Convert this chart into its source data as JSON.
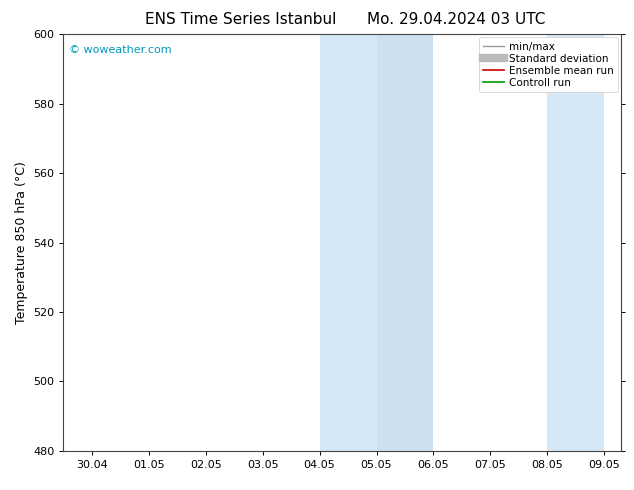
{
  "title": "ENS Time Series Istanbul",
  "subtitle": "Mo. 29.04.2024 03 UTC",
  "ylabel": "Temperature 850 hPa (°C)",
  "ylim": [
    480,
    600
  ],
  "yticks": [
    480,
    500,
    520,
    540,
    560,
    580,
    600
  ],
  "xtick_labels": [
    "30.04",
    "01.05",
    "02.05",
    "03.05",
    "04.05",
    "05.05",
    "06.05",
    "07.05",
    "08.05",
    "09.05"
  ],
  "watermark": "© woweather.com",
  "watermark_color": "#0099bb",
  "shaded_regions": [
    {
      "xstart": 4,
      "xend": 5,
      "color": "#d6e8f5"
    },
    {
      "xstart": 5,
      "xend": 6,
      "color": "#cce0f0"
    },
    {
      "xstart": 8,
      "xend": 9,
      "color": "#d6e8f5"
    }
  ],
  "legend_items": [
    {
      "label": "min/max",
      "color": "#999999",
      "lw": 1.0,
      "style": "solid",
      "type": "line"
    },
    {
      "label": "Standard deviation",
      "color": "#bbbbbb",
      "lw": 6,
      "style": "solid",
      "type": "thick"
    },
    {
      "label": "Ensemble mean run",
      "color": "#cc0000",
      "lw": 1.2,
      "style": "solid",
      "type": "line"
    },
    {
      "label": "Controll run",
      "color": "#009900",
      "lw": 1.2,
      "style": "solid",
      "type": "line"
    }
  ],
  "bg_color": "#ffffff",
  "plot_bg_color": "#ffffff",
  "title_fontsize": 11,
  "ylabel_fontsize": 9,
  "tick_fontsize": 8,
  "watermark_fontsize": 8,
  "legend_fontsize": 7.5
}
